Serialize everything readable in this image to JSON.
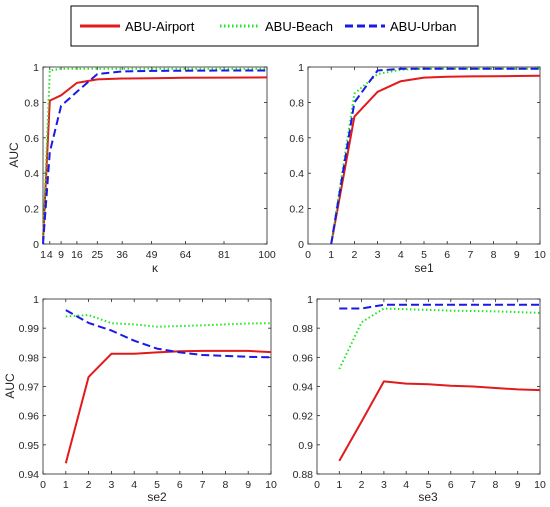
{
  "legend": {
    "location": "top-center",
    "entries": [
      {
        "label": "ABU-Airport",
        "color": "#e11b1b",
        "style": "solid"
      },
      {
        "label": "ABU-Beach",
        "color": "#1ee61e",
        "style": "dotted"
      },
      {
        "label": "ABU-Urban",
        "color": "#1a1ae6",
        "style": "dashed"
      }
    ]
  },
  "chart_data": [
    {
      "type": "line",
      "xlabel": "κ",
      "ylabel": "AUC",
      "xlim": [
        1,
        100
      ],
      "ylim": [
        0,
        1
      ],
      "xticks": [
        1,
        4,
        9,
        16,
        25,
        36,
        49,
        64,
        81,
        100
      ],
      "xticklabels": [
        "1",
        "4",
        "9",
        "16",
        "25",
        "36",
        "49",
        "64",
        "81",
        "100"
      ],
      "yticks": [
        0,
        0.2,
        0.4,
        0.6,
        0.8,
        1
      ],
      "yticklabels": [
        "0",
        "0.2",
        "0.4",
        "0.6",
        "0.8",
        "1"
      ],
      "grid": false,
      "series": [
        {
          "name": "ABU-Airport",
          "x": [
            1,
            4,
            9,
            16,
            25,
            36,
            49,
            64,
            81,
            100
          ],
          "y": [
            0.02,
            0.81,
            0.84,
            0.91,
            0.93,
            0.935,
            0.937,
            0.939,
            0.94,
            0.941
          ]
        },
        {
          "name": "ABU-Beach",
          "x": [
            1,
            4,
            9,
            16,
            25,
            36,
            49,
            64,
            81,
            100
          ],
          "y": [
            0.02,
            0.98,
            0.99,
            0.99,
            0.99,
            0.99,
            0.99,
            0.99,
            0.99,
            0.99
          ]
        },
        {
          "name": "ABU-Urban",
          "x": [
            1,
            4,
            9,
            16,
            25,
            36,
            49,
            64,
            81,
            100
          ],
          "y": [
            0.0,
            0.52,
            0.78,
            0.86,
            0.96,
            0.975,
            0.978,
            0.979,
            0.98,
            0.98
          ]
        }
      ]
    },
    {
      "type": "line",
      "xlabel": "se1",
      "ylabel": "",
      "xlim": [
        0,
        10
      ],
      "ylim": [
        0,
        1
      ],
      "xticks": [
        0,
        1,
        2,
        3,
        4,
        5,
        6,
        7,
        8,
        9,
        10
      ],
      "xticklabels": [
        "0",
        "1",
        "2",
        "3",
        "4",
        "5",
        "6",
        "7",
        "8",
        "9",
        "10"
      ],
      "yticks": [
        0,
        0.2,
        0.4,
        0.6,
        0.8,
        1
      ],
      "yticklabels": [
        "0",
        "0.2",
        "0.4",
        "0.6",
        "0.8",
        "1"
      ],
      "grid": false,
      "series": [
        {
          "name": "ABU-Airport",
          "x": [
            1,
            2,
            3,
            4,
            5,
            6,
            7,
            8,
            9,
            10
          ],
          "y": [
            0.0,
            0.72,
            0.86,
            0.92,
            0.94,
            0.945,
            0.947,
            0.948,
            0.949,
            0.95
          ]
        },
        {
          "name": "ABU-Beach",
          "x": [
            1,
            2,
            3,
            4,
            5,
            6,
            7,
            8,
            9,
            10
          ],
          "y": [
            0.0,
            0.85,
            0.96,
            0.985,
            0.99,
            0.99,
            0.99,
            0.99,
            0.99,
            0.99
          ]
        },
        {
          "name": "ABU-Urban",
          "x": [
            1,
            2,
            3,
            4,
            5,
            6,
            7,
            8,
            9,
            10
          ],
          "y": [
            0.0,
            0.8,
            0.98,
            0.99,
            0.99,
            0.99,
            0.99,
            0.99,
            0.99,
            0.99
          ]
        }
      ]
    },
    {
      "type": "line",
      "xlabel": "se2",
      "ylabel": "AUC",
      "xlim": [
        0,
        10
      ],
      "ylim": [
        0.94,
        1
      ],
      "xticks": [
        0,
        1,
        2,
        3,
        4,
        5,
        6,
        7,
        8,
        9,
        10
      ],
      "xticklabels": [
        "0",
        "1",
        "2",
        "3",
        "4",
        "5",
        "6",
        "7",
        "8",
        "9",
        "10"
      ],
      "yticks": [
        0.94,
        0.95,
        0.96,
        0.97,
        0.98,
        0.99,
        1
      ],
      "yticklabels": [
        "0.94",
        "0.95",
        "0.96",
        "0.97",
        "0.98",
        "0.99",
        "1"
      ],
      "grid": false,
      "series": [
        {
          "name": "ABU-Airport",
          "x": [
            1,
            2,
            3,
            4,
            5,
            6,
            7,
            8,
            9,
            10
          ],
          "y": [
            0.9437,
            0.9733,
            0.9812,
            0.9812,
            0.9817,
            0.9821,
            0.9822,
            0.9822,
            0.9822,
            0.9818
          ]
        },
        {
          "name": "ABU-Beach",
          "x": [
            1,
            2,
            3,
            4,
            5,
            6,
            7,
            8,
            9,
            10
          ],
          "y": [
            0.994,
            0.9945,
            0.9917,
            0.9913,
            0.9905,
            0.9907,
            0.991,
            0.9913,
            0.9916,
            0.9917
          ]
        },
        {
          "name": "ABU-Urban",
          "x": [
            1,
            2,
            3,
            4,
            5,
            6,
            7,
            8,
            9,
            10
          ],
          "y": [
            0.9962,
            0.9918,
            0.9892,
            0.9857,
            0.983,
            0.9817,
            0.9808,
            0.9805,
            0.9802,
            0.98
          ]
        }
      ]
    },
    {
      "type": "line",
      "xlabel": "se3",
      "ylabel": "",
      "xlim": [
        0,
        10
      ],
      "ylim": [
        0.88,
        1
      ],
      "xticks": [
        0,
        1,
        2,
        3,
        4,
        5,
        6,
        7,
        8,
        9,
        10
      ],
      "xticklabels": [
        "0",
        "1",
        "2",
        "3",
        "4",
        "5",
        "6",
        "7",
        "8",
        "9",
        "10"
      ],
      "yticks": [
        0.88,
        0.9,
        0.92,
        0.94,
        0.96,
        0.98,
        1
      ],
      "yticklabels": [
        "0.88",
        "0.9",
        "0.92",
        "0.94",
        "0.96",
        "0.98",
        "1"
      ],
      "grid": false,
      "series": [
        {
          "name": "ABU-Airport",
          "x": [
            1,
            2,
            3,
            4,
            5,
            6,
            7,
            8,
            9,
            10
          ],
          "y": [
            0.889,
            0.916,
            0.9435,
            0.942,
            0.9415,
            0.9405,
            0.94,
            0.939,
            0.938,
            0.9375
          ]
        },
        {
          "name": "ABU-Beach",
          "x": [
            1,
            2,
            3,
            4,
            5,
            6,
            7,
            8,
            9,
            10
          ],
          "y": [
            0.952,
            0.984,
            0.9935,
            0.993,
            0.9925,
            0.992,
            0.9918,
            0.9915,
            0.991,
            0.9905
          ]
        },
        {
          "name": "ABU-Urban",
          "x": [
            1,
            2,
            3,
            4,
            5,
            6,
            7,
            8,
            9,
            10
          ],
          "y": [
            0.9935,
            0.9935,
            0.996,
            0.996,
            0.996,
            0.996,
            0.996,
            0.996,
            0.996,
            0.996
          ]
        }
      ]
    }
  ]
}
